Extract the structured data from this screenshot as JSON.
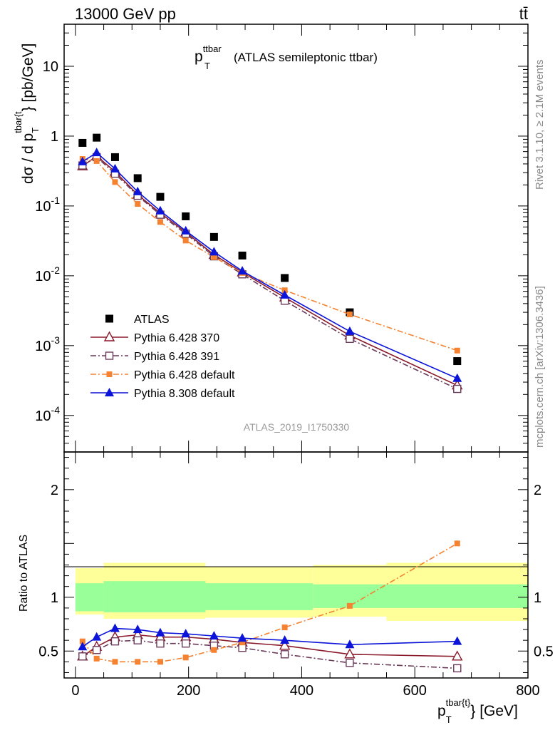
{
  "header": {
    "left": "13000 GeV pp",
    "right": "tt̄"
  },
  "main_panel": {
    "title_main": "p",
    "title_sup": "ttbar",
    "title_sub": "T",
    "title_rest": "(ATLAS semileptonic ttbar)",
    "ylabel_parts": [
      "dσ / d p",
      "T",
      "tbar{t",
      "} [pb/GeV]"
    ],
    "watermark": "ATLAS_2019_I1750330"
  },
  "side_labels": {
    "top": "Rivet 3.1.10, ≥ 2.1M events",
    "bottom": "mcplots.cern.ch [arXiv:1306.3436]"
  },
  "ratio_panel": {
    "ylabel": "Ratio to ATLAS"
  },
  "xlabel_parts": [
    "p",
    "T",
    "tbar{t}",
    "} [GeV]"
  ],
  "colors": {
    "data": "#000000",
    "py6_370": "#8b1a2b",
    "py6_391": "#6b3b5a",
    "py6_default": "#f58231",
    "py8_default": "#0b14d8",
    "band_inner": "#99ff99",
    "band_outer": "#ffff99"
  },
  "chart_data": [
    {
      "type": "scatter",
      "panel": "main",
      "x": [
        12.5,
        37.5,
        70,
        110,
        150,
        195,
        245,
        295,
        370,
        485,
        675
      ],
      "xlim": [
        -20,
        800
      ],
      "xticks": [
        0,
        200,
        400,
        600,
        800
      ],
      "ylog": true,
      "ylim": [
        3e-05,
        40
      ],
      "ytick_labels": [
        "10",
        "1",
        "10^-1",
        "10^-2",
        "10^-3",
        "10^-4"
      ],
      "series": [
        {
          "name": "ATLAS",
          "key": "data",
          "marker": "filled-square",
          "line": "none",
          "values": [
            0.8,
            0.95,
            0.5,
            0.25,
            0.135,
            0.071,
            0.036,
            0.0195,
            0.0093,
            0.003,
            0.0006
          ]
        },
        {
          "name": "Pythia 6.428 370",
          "key": "py6_370",
          "marker": "open-triangle",
          "line": "solid",
          "values": [
            0.37,
            0.52,
            0.31,
            0.145,
            0.079,
            0.042,
            0.02,
            0.0112,
            0.0049,
            0.0014,
            0.00027
          ]
        },
        {
          "name": "Pythia 6.428 391",
          "key": "py6_391",
          "marker": "open-square",
          "line": "dashdot",
          "values": [
            0.38,
            0.5,
            0.29,
            0.14,
            0.075,
            0.04,
            0.019,
            0.0105,
            0.0044,
            0.00125,
            0.00024
          ]
        },
        {
          "name": "Pythia 6.428 default",
          "key": "py6_default",
          "marker": "small-filled-square",
          "line": "dashdot",
          "values": [
            0.47,
            0.44,
            0.22,
            0.107,
            0.059,
            0.032,
            0.0185,
            0.011,
            0.0062,
            0.0028,
            0.00085
          ]
        },
        {
          "name": "Pythia 8.308 default",
          "key": "py8_default",
          "marker": "filled-triangle",
          "line": "solid",
          "values": [
            0.43,
            0.58,
            0.34,
            0.16,
            0.085,
            0.044,
            0.022,
            0.0117,
            0.0053,
            0.0016,
            0.00034
          ]
        }
      ]
    },
    {
      "type": "line",
      "panel": "ratio",
      "x": [
        12.5,
        37.5,
        70,
        110,
        150,
        195,
        245,
        295,
        370,
        485,
        675
      ],
      "xlim": [
        -20,
        800
      ],
      "xticks": [
        0,
        200,
        400,
        600,
        800
      ],
      "xtick_labels": [
        "0",
        "200",
        "400",
        "600",
        "800"
      ],
      "ylim": [
        0.25,
        2.35
      ],
      "ytick_labels": [
        "0.5",
        "1",
        "2"
      ],
      "bands": {
        "edges": [
          0,
          50,
          230,
          420,
          550,
          800
        ],
        "inner_lo": [
          0.87,
          0.86,
          0.88,
          0.9,
          0.9
        ],
        "inner_hi": [
          1.13,
          1.15,
          1.13,
          1.12,
          1.12
        ],
        "outer_lo": [
          0.84,
          0.8,
          0.81,
          0.82,
          0.78
        ],
        "outer_hi": [
          1.27,
          1.32,
          1.28,
          1.3,
          1.32
        ]
      },
      "series": [
        {
          "key": "py6_370",
          "values": [
            0.45,
            0.54,
            0.63,
            0.65,
            0.63,
            0.63,
            0.61,
            0.58,
            0.55,
            0.47,
            0.45
          ]
        },
        {
          "key": "py6_391",
          "values": [
            0.45,
            0.51,
            0.59,
            0.6,
            0.57,
            0.57,
            0.55,
            0.53,
            0.47,
            0.39,
            0.34
          ]
        },
        {
          "key": "py6_default",
          "values": [
            0.59,
            0.43,
            0.4,
            0.4,
            0.4,
            0.44,
            0.51,
            0.58,
            0.72,
            0.92,
            1.5
          ]
        },
        {
          "key": "py8_default",
          "values": [
            0.54,
            0.63,
            0.71,
            0.7,
            0.67,
            0.66,
            0.64,
            0.62,
            0.6,
            0.56,
            0.59
          ]
        }
      ]
    }
  ]
}
